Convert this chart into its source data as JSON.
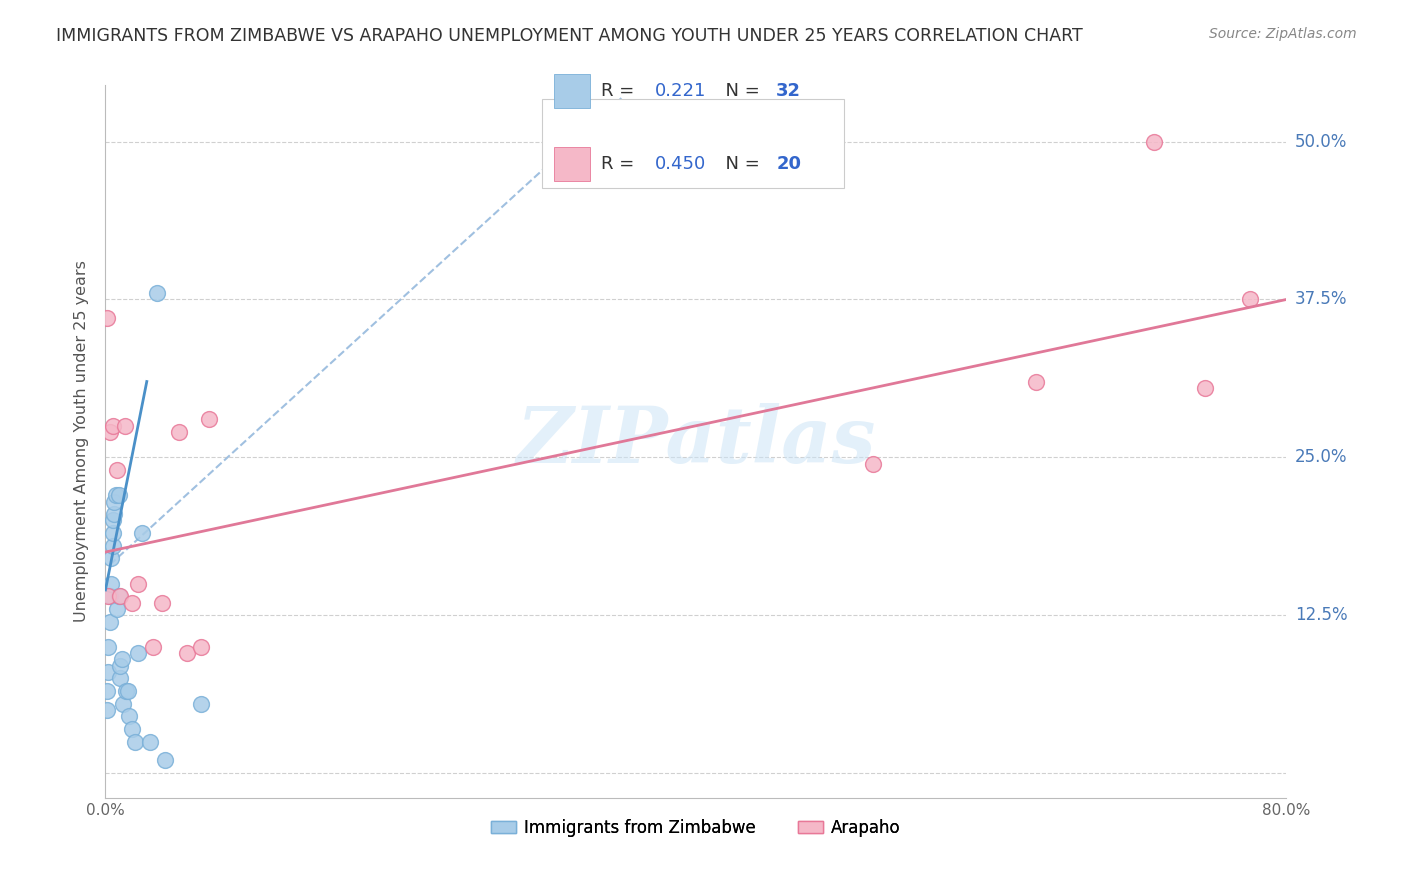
{
  "title": "IMMIGRANTS FROM ZIMBABWE VS ARAPAHO UNEMPLOYMENT AMONG YOUTH UNDER 25 YEARS CORRELATION CHART",
  "source": "Source: ZipAtlas.com",
  "ylabel": "Unemployment Among Youth under 25 years",
  "legend_series": [
    "Immigrants from Zimbabwe",
    "Arapaho"
  ],
  "legend_r": [
    "0.221",
    "0.450"
  ],
  "legend_n": [
    "32",
    "20"
  ],
  "watermark": "ZIPatlas",
  "xlim": [
    0.0,
    0.8
  ],
  "ylim": [
    -0.02,
    0.545
  ],
  "xticks": [
    0.0,
    0.1,
    0.2,
    0.3,
    0.4,
    0.5,
    0.6,
    0.7,
    0.8
  ],
  "xtick_labels": [
    "0.0%",
    "",
    "",
    "",
    "",
    "",
    "",
    "",
    "80.0%"
  ],
  "ytick_vals": [
    0.0,
    0.125,
    0.25,
    0.375,
    0.5
  ],
  "ytick_right_labels": [
    "",
    "12.5%",
    "25.0%",
    "37.5%",
    "50.0%"
  ],
  "blue_scatter_color": "#a8cce8",
  "blue_edge_color": "#7ab0d8",
  "pink_scatter_color": "#f5b8c8",
  "pink_edge_color": "#e87898",
  "blue_trend_color": "#4a90c8",
  "pink_trend_color": "#e07898",
  "dashed_line_color": "#a0c0e0",
  "right_tick_color": "#4a7ab8",
  "title_color": "#333333",
  "source_color": "#888888",
  "zimbabwe_x": [
    0.001,
    0.001,
    0.002,
    0.002,
    0.003,
    0.003,
    0.004,
    0.004,
    0.005,
    0.005,
    0.005,
    0.006,
    0.006,
    0.007,
    0.008,
    0.009,
    0.009,
    0.01,
    0.01,
    0.011,
    0.012,
    0.014,
    0.015,
    0.016,
    0.018,
    0.02,
    0.022,
    0.025,
    0.03,
    0.035,
    0.04,
    0.065
  ],
  "zimbabwe_y": [
    0.05,
    0.065,
    0.08,
    0.1,
    0.12,
    0.14,
    0.15,
    0.17,
    0.18,
    0.19,
    0.2,
    0.205,
    0.215,
    0.22,
    0.13,
    0.14,
    0.22,
    0.075,
    0.085,
    0.09,
    0.055,
    0.065,
    0.065,
    0.045,
    0.035,
    0.025,
    0.095,
    0.19,
    0.025,
    0.38,
    0.01,
    0.055
  ],
  "arapaho_x": [
    0.001,
    0.002,
    0.003,
    0.005,
    0.008,
    0.01,
    0.013,
    0.018,
    0.022,
    0.032,
    0.038,
    0.05,
    0.055,
    0.065,
    0.07,
    0.52,
    0.63,
    0.71,
    0.745,
    0.775
  ],
  "arapaho_y": [
    0.36,
    0.14,
    0.27,
    0.275,
    0.24,
    0.14,
    0.275,
    0.135,
    0.15,
    0.1,
    0.135,
    0.27,
    0.095,
    0.1,
    0.28,
    0.245,
    0.31,
    0.5,
    0.305,
    0.375
  ],
  "zimbabwe_solid_trend_x": [
    0.0,
    0.028
  ],
  "zimbabwe_solid_trend_y": [
    0.145,
    0.31
  ],
  "zimbabwe_dashed_trend_x": [
    0.003,
    0.35
  ],
  "zimbabwe_dashed_trend_y": [
    0.165,
    0.535
  ],
  "arapaho_trend_x": [
    0.0,
    0.8
  ],
  "arapaho_trend_y": [
    0.175,
    0.375
  ]
}
